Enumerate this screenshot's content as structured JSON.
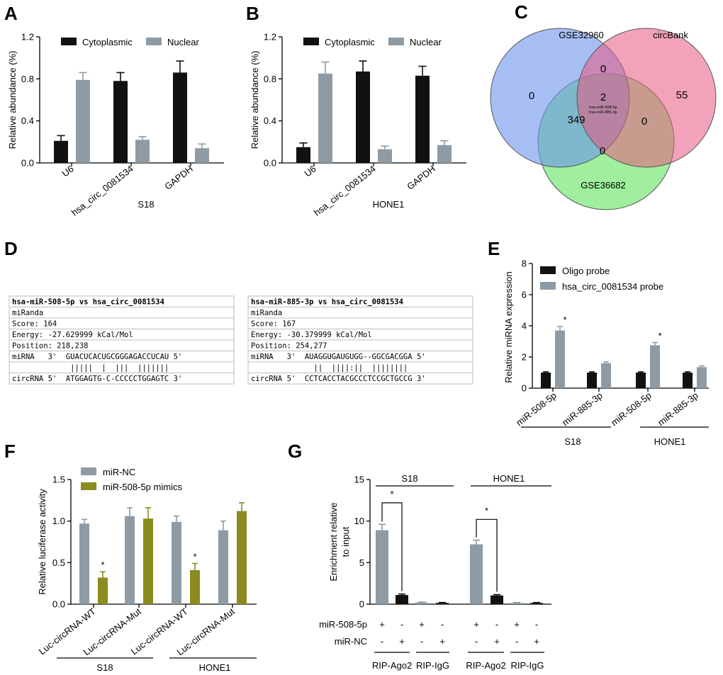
{
  "colors": {
    "black": "#111111",
    "gray": "#8e9ba4",
    "olive": "#8b8b1f",
    "blue": "#6b93ec",
    "pink": "#e8577f",
    "green": "#5fe55f"
  },
  "panels": {
    "A": "A",
    "B": "B",
    "C": "C",
    "D": "D",
    "E": "E",
    "F": "F",
    "G": "G"
  },
  "chart_data": [
    {
      "id": "A",
      "type": "bar",
      "ylabel": "Relative abundance (%)",
      "xlabel": "S18",
      "categories": [
        "U6",
        "hsa_circ_0081534",
        "GAPDH"
      ],
      "ylim": [
        0,
        1.2
      ],
      "ticks": [
        "0.0",
        "0.4",
        "0.8",
        "1.2"
      ],
      "series": [
        {
          "name": "Cytoplasmic",
          "color": "black",
          "values": [
            0.21,
            0.78,
            0.86
          ],
          "errors": [
            0.05,
            0.08,
            0.11
          ]
        },
        {
          "name": "Nuclear",
          "color": "gray",
          "values": [
            0.79,
            0.22,
            0.14
          ],
          "errors": [
            0.07,
            0.03,
            0.04
          ]
        }
      ]
    },
    {
      "id": "B",
      "type": "bar",
      "ylabel": "Relative abundance (%)",
      "xlabel": "HONE1",
      "categories": [
        "U6",
        "hsa_circ_0081534",
        "GAPDH"
      ],
      "ylim": [
        0,
        1.2
      ],
      "ticks": [
        "0.0",
        "0.4",
        "0.8",
        "1.2"
      ],
      "series": [
        {
          "name": "Cytoplasmic",
          "color": "black",
          "values": [
            0.15,
            0.87,
            0.83
          ],
          "errors": [
            0.04,
            0.1,
            0.09
          ]
        },
        {
          "name": "Nuclear",
          "color": "gray",
          "values": [
            0.85,
            0.13,
            0.17
          ],
          "errors": [
            0.11,
            0.03,
            0.04
          ]
        }
      ]
    },
    {
      "id": "E",
      "type": "bar",
      "ylabel": "Relative miRNA expression",
      "categories": [
        "miR-508-5p",
        "miR-885-3p",
        "miR-508-5p",
        "miR-885-3p"
      ],
      "groups": [
        "S18",
        "HONE1"
      ],
      "ylim": [
        0,
        8
      ],
      "ticks": [
        "0",
        "2",
        "4",
        "6",
        "8"
      ],
      "significance": "*",
      "series": [
        {
          "name": "Oligo probe",
          "color": "black",
          "values": [
            1.0,
            1.0,
            1.0,
            1.0
          ],
          "errors": [
            0.05,
            0.05,
            0.05,
            0.05
          ]
        },
        {
          "name": "hsa_circ_0081534 probe",
          "color": "gray",
          "values": [
            3.7,
            1.6,
            2.75,
            1.35
          ],
          "errors": [
            0.25,
            0.08,
            0.18,
            0.08
          ]
        }
      ]
    },
    {
      "id": "F",
      "type": "bar",
      "ylabel": "Relative luciferase activity",
      "categories": [
        "Luc-circRNA-WT",
        "Luc-circRNA-Mut",
        "Luc-circRNA-WT",
        "Luc-circRNA-Mut"
      ],
      "groups": [
        "S18",
        "HONE1"
      ],
      "ylim": [
        0,
        1.5
      ],
      "ticks": [
        "0.0",
        "0.5",
        "1.0",
        "1.5"
      ],
      "significance": "*",
      "series": [
        {
          "name": "miR-NC",
          "color": "gray",
          "values": [
            0.97,
            1.06,
            0.99,
            0.89
          ],
          "errors": [
            0.05,
            0.1,
            0.07,
            0.11
          ]
        },
        {
          "name": "miR-508-5p mimics",
          "color": "olive",
          "values": [
            0.32,
            1.03,
            0.41,
            1.12
          ],
          "errors": [
            0.07,
            0.13,
            0.08,
            0.1
          ]
        }
      ]
    },
    {
      "id": "G",
      "type": "bar",
      "ylabel": "Enrichment relative to input",
      "ylabel_lines": [
        "Enrichment relative",
        "to input"
      ],
      "groups": [
        "S18",
        "HONE1"
      ],
      "ylim": [
        0,
        15
      ],
      "ticks": [
        "0",
        "5",
        "10",
        "15"
      ],
      "significance": "*",
      "bars": [
        {
          "value": 8.9,
          "error": 0.7,
          "color": "gray"
        },
        {
          "value": 1.1,
          "error": 0.12,
          "color": "black"
        },
        {
          "value": 0.2,
          "error": 0.05,
          "color": "gray"
        },
        {
          "value": 0.15,
          "error": 0.05,
          "color": "black"
        },
        {
          "value": 7.2,
          "error": 0.5,
          "color": "gray"
        },
        {
          "value": 1.05,
          "error": 0.1,
          "color": "black"
        },
        {
          "value": 0.15,
          "error": 0.05,
          "color": "gray"
        },
        {
          "value": 0.15,
          "error": 0.05,
          "color": "black"
        }
      ],
      "row_labels": [
        "miR-508-5p",
        "miR-NC"
      ],
      "mir508_signs": [
        "+",
        "-",
        "+",
        "-",
        "+",
        "-",
        "+",
        "-"
      ],
      "mirnc_signs": [
        "-",
        "+",
        "-",
        "+",
        "-",
        "+",
        "-",
        "+"
      ],
      "subgroups": [
        "RIP-Ago2",
        "RIP-IgG",
        "RIP-Ago2",
        "RIP-IgG"
      ]
    }
  ],
  "venn": {
    "sets": [
      "GSE32960",
      "circBank",
      "GSE36682"
    ],
    "regions": {
      "blue_only": "0",
      "pink_only": "55",
      "green_only": "0",
      "blue_pink": "0",
      "blue_green": "349",
      "pink_green": "0",
      "center": "2"
    },
    "center_labels": [
      "hsa-miR-508-5p",
      "hsa-miR-885-3p"
    ]
  },
  "alignment": [
    {
      "header": "hsa-miR-508-5p vs hsa_circ_0081534",
      "method": "miRanda",
      "score": "Score: 164",
      "energy": "Energy: -27.629999 kCal/Mol",
      "position": "Position: 218,238",
      "mirna": "miRNA   3'  GUACUCACUGCGGGAGACCUCAU 5'",
      "match": "             |||||  |  |||  |||||||",
      "circrna": "circRNA 5'  ATGGAGTG-C-CCCCCTGGAGTC 3'"
    },
    {
      "header": "hsa-miR-885-3p vs hsa_circ_0081534",
      "method": "miRanda",
      "score": "Score: 167",
      "energy": "Energy: -30.379999 kCal/Mol",
      "position": "Position: 254,277",
      "mirna": "miRNA   3'  AUAGGUGAUGUGG--GGCGACGGA 5'",
      "match": "              ||  ||||:||  ||||||||",
      "circrna": "circRNA 5'  CCTCACCTACGCCCTCCGCTGCCG 3'"
    }
  ]
}
